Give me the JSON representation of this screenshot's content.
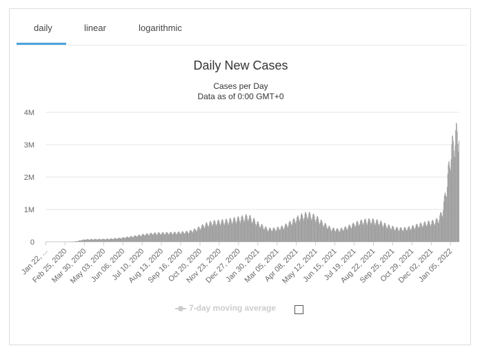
{
  "tabs": [
    {
      "label": "daily",
      "active": true
    },
    {
      "label": "linear",
      "active": false
    },
    {
      "label": "logarithmic",
      "active": false
    }
  ],
  "accent_color": "#4aa3df",
  "bar_color": "#9a9a9a",
  "legend": {
    "label": "7-day moving average",
    "checked": false,
    "color": "#cccccc"
  },
  "chart_data": {
    "type": "bar",
    "title": "Daily New Cases",
    "subtitle": [
      "Cases per Day",
      "Data as of 0:00 GMT+0"
    ],
    "ylim": [
      0,
      4000000
    ],
    "yticks": [
      {
        "value": 0,
        "label": "0"
      },
      {
        "value": 1000000,
        "label": "1M"
      },
      {
        "value": 2000000,
        "label": "2M"
      },
      {
        "value": 3000000,
        "label": "3M"
      },
      {
        "value": 4000000,
        "label": "4M"
      }
    ],
    "x_tick_labels": [
      "Jan 22, ...",
      "Feb 25, 2020",
      "Mar 30, 2020",
      "May 03, 2020",
      "Jun 06, 2020",
      "Jul 10, 2020",
      "Aug 13, 2020",
      "Sep 16, 2020",
      "Oct 20, 2020",
      "Nov 23, 2020",
      "Dec 27, 2020",
      "Jan 30, 2021",
      "Mar 05, 2021",
      "Apr 08, 2021",
      "May 12, 2021",
      "Jun 15, 2021",
      "Jul 19, 2021",
      "Aug 22, 2021",
      "Sep 25, 2021",
      "Oct 29, 2021",
      "Dec 02, 2021",
      "Jan 05, 2022"
    ],
    "x_start": "2020-01-22",
    "x_end": "2022-01-20",
    "weekly_series": [
      {
        "week_start": "2020-01-22",
        "value": 1000
      },
      {
        "week_start": "2020-02-05",
        "value": 3000
      },
      {
        "week_start": "2020-02-19",
        "value": 2000
      },
      {
        "week_start": "2020-03-04",
        "value": 5000
      },
      {
        "week_start": "2020-03-11",
        "value": 10000
      },
      {
        "week_start": "2020-03-18",
        "value": 25000
      },
      {
        "week_start": "2020-03-25",
        "value": 55000
      },
      {
        "week_start": "2020-04-01",
        "value": 75000
      },
      {
        "week_start": "2020-04-15",
        "value": 80000
      },
      {
        "week_start": "2020-05-13",
        "value": 90000
      },
      {
        "week_start": "2020-06-03",
        "value": 120000
      },
      {
        "week_start": "2020-06-24",
        "value": 170000
      },
      {
        "week_start": "2020-07-15",
        "value": 230000
      },
      {
        "week_start": "2020-07-29",
        "value": 260000
      },
      {
        "week_start": "2020-08-19",
        "value": 270000
      },
      {
        "week_start": "2020-09-09",
        "value": 280000
      },
      {
        "week_start": "2020-09-30",
        "value": 310000
      },
      {
        "week_start": "2020-10-14",
        "value": 390000
      },
      {
        "week_start": "2020-10-28",
        "value": 520000
      },
      {
        "week_start": "2020-11-11",
        "value": 600000
      },
      {
        "week_start": "2020-11-25",
        "value": 620000
      },
      {
        "week_start": "2020-12-09",
        "value": 650000
      },
      {
        "week_start": "2020-12-30",
        "value": 720000
      },
      {
        "week_start": "2021-01-13",
        "value": 780000
      },
      {
        "week_start": "2021-01-20",
        "value": 700000
      },
      {
        "week_start": "2021-02-03",
        "value": 520000
      },
      {
        "week_start": "2021-02-17",
        "value": 390000
      },
      {
        "week_start": "2021-03-03",
        "value": 400000
      },
      {
        "week_start": "2021-03-17",
        "value": 470000
      },
      {
        "week_start": "2021-03-31",
        "value": 620000
      },
      {
        "week_start": "2021-04-14",
        "value": 770000
      },
      {
        "week_start": "2021-04-28",
        "value": 850000
      },
      {
        "week_start": "2021-05-12",
        "value": 760000
      },
      {
        "week_start": "2021-05-26",
        "value": 560000
      },
      {
        "week_start": "2021-06-09",
        "value": 400000
      },
      {
        "week_start": "2021-06-23",
        "value": 370000
      },
      {
        "week_start": "2021-07-07",
        "value": 450000
      },
      {
        "week_start": "2021-07-21",
        "value": 560000
      },
      {
        "week_start": "2021-08-04",
        "value": 640000
      },
      {
        "week_start": "2021-08-18",
        "value": 660000
      },
      {
        "week_start": "2021-09-01",
        "value": 610000
      },
      {
        "week_start": "2021-09-15",
        "value": 500000
      },
      {
        "week_start": "2021-09-29",
        "value": 420000
      },
      {
        "week_start": "2021-10-13",
        "value": 400000
      },
      {
        "week_start": "2021-10-27",
        "value": 440000
      },
      {
        "week_start": "2021-11-10",
        "value": 520000
      },
      {
        "week_start": "2021-11-24",
        "value": 580000
      },
      {
        "week_start": "2021-12-08",
        "value": 620000
      },
      {
        "week_start": "2021-12-15",
        "value": 700000
      },
      {
        "week_start": "2021-12-22",
        "value": 950000
      },
      {
        "week_start": "2021-12-29",
        "value": 1700000
      },
      {
        "week_start": "2022-01-05",
        "value": 2700000
      },
      {
        "week_start": "2022-01-12",
        "value": 3200000
      },
      {
        "week_start": "2022-01-19",
        "value": 3400000
      }
    ]
  }
}
